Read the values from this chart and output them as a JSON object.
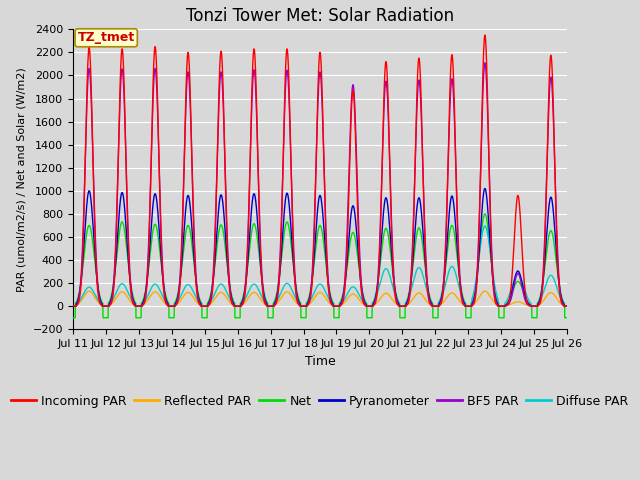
{
  "title": "Tonzi Tower Met: Solar Radiation",
  "ylabel": "PAR (umol/m2/s) / Net and Solar (W/m2)",
  "xlabel": "Time",
  "ylim": [
    -200,
    2400
  ],
  "yticks": [
    -200,
    0,
    200,
    400,
    600,
    800,
    1000,
    1200,
    1400,
    1600,
    1800,
    2000,
    2200,
    2400
  ],
  "background_color": "#d8d8d8",
  "plot_bg_color": "#d8d8d8",
  "annotation_text": "TZ_tmet",
  "annotation_bg": "#ffffcc",
  "annotation_border": "#aa8800",
  "series": {
    "incoming_par": {
      "label": "Incoming PAR",
      "color": "#ff0000"
    },
    "reflected_par": {
      "label": "Reflected PAR",
      "color": "#ffaa00"
    },
    "net": {
      "label": "Net",
      "color": "#00dd00"
    },
    "pyranometer": {
      "label": "Pyranometer",
      "color": "#0000cc"
    },
    "bf5_par": {
      "label": "BF5 PAR",
      "color": "#9900cc"
    },
    "diffuse_par": {
      "label": "Diffuse PAR",
      "color": "#00cccc"
    }
  },
  "n_days": 15,
  "points_per_day": 288,
  "xtick_labels": [
    "Jul 11",
    "Jul 12",
    "Jul 13",
    "Jul 14",
    "Jul 15",
    "Jul 16",
    "Jul 17",
    "Jul 18",
    "Jul 19",
    "Jul 20",
    "Jul 21",
    "Jul 22",
    "Jul 23",
    "Jul 24",
    "Jul 25",
    "Jul 26"
  ],
  "day_peaks_incoming": [
    2240,
    2230,
    2250,
    2200,
    2210,
    2230,
    2230,
    2200,
    1870,
    2120,
    2150,
    2180,
    2350,
    960,
    2175
  ],
  "day_peaks_pyranometer": [
    1000,
    985,
    975,
    960,
    965,
    975,
    980,
    960,
    870,
    940,
    940,
    955,
    1020,
    305,
    945
  ],
  "day_peaks_net": [
    700,
    730,
    710,
    700,
    705,
    715,
    730,
    700,
    640,
    675,
    680,
    700,
    800,
    215,
    655
  ],
  "day_peaks_reflected": [
    130,
    125,
    125,
    120,
    120,
    120,
    125,
    120,
    105,
    112,
    115,
    115,
    130,
    38,
    118
  ],
  "day_peaks_bf5": [
    2060,
    2055,
    2060,
    2030,
    2030,
    2050,
    2045,
    2030,
    1920,
    1950,
    1960,
    1970,
    2110,
    285,
    1985
  ],
  "day_peaks_diffuse": [
    165,
    195,
    192,
    188,
    192,
    192,
    198,
    192,
    168,
    325,
    335,
    345,
    695,
    278,
    268
  ],
  "net_negative": -100,
  "title_fontsize": 12,
  "tick_fontsize": 8,
  "legend_fontsize": 9,
  "lw": 1.0
}
